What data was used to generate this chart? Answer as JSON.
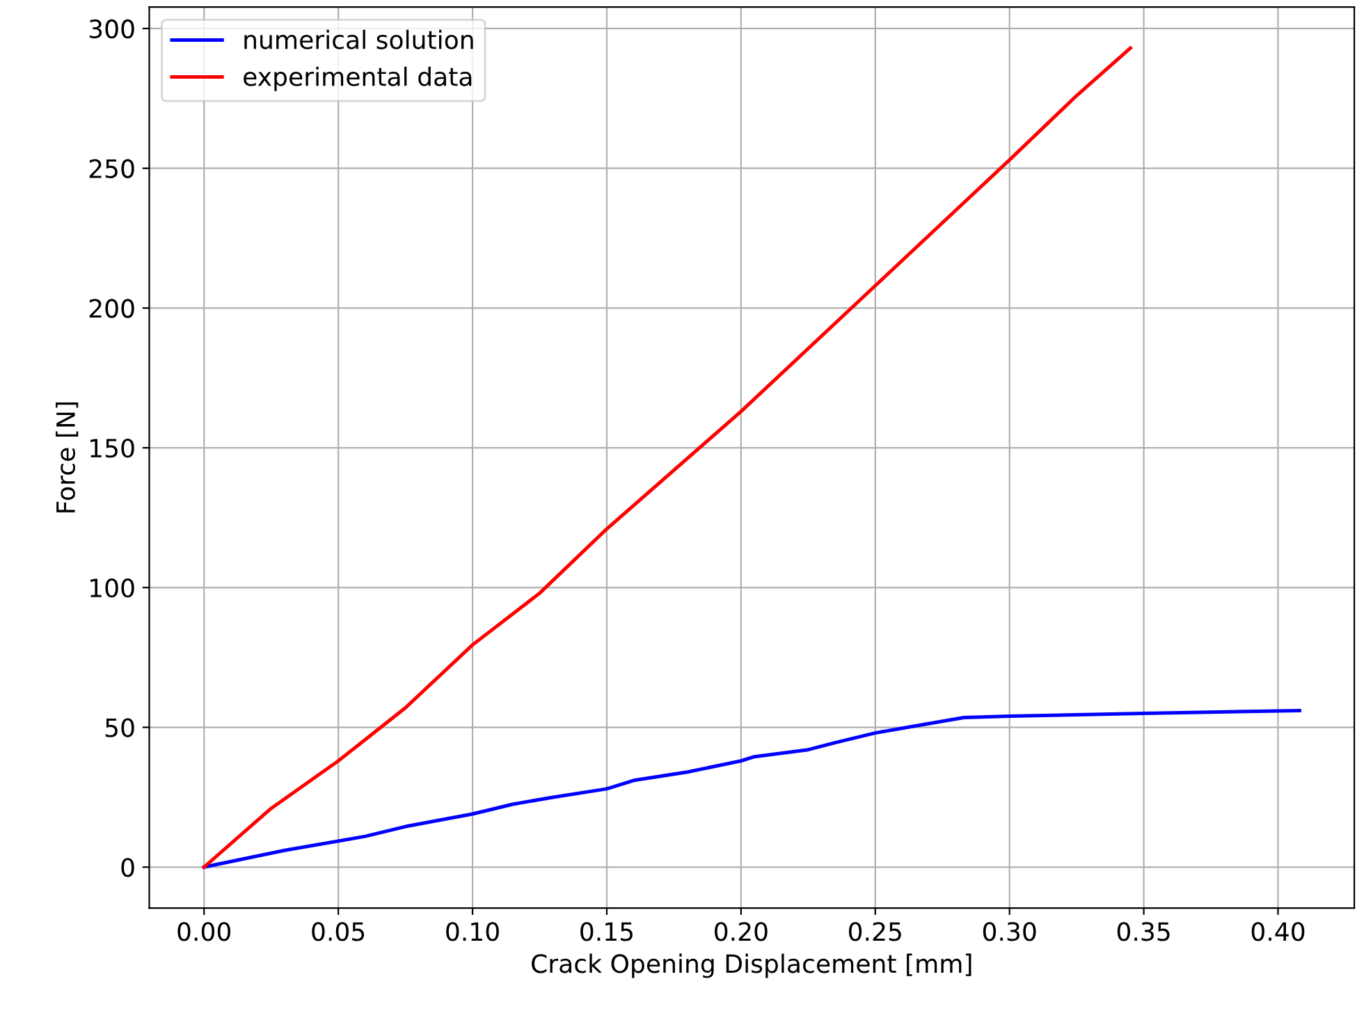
{
  "chart_data": {
    "type": "line",
    "xlabel": "Crack Opening Displacement [mm]",
    "ylabel": "Force [N]",
    "series": [
      {
        "name": "numerical solution",
        "color": "#0000ff",
        "x": [
          0,
          0.015,
          0.03,
          0.06,
          0.075,
          0.1,
          0.115,
          0.13,
          0.15,
          0.16,
          0.18,
          0.2,
          0.205,
          0.225,
          0.235,
          0.25,
          0.265,
          0.283,
          0.3,
          0.35,
          0.408
        ],
        "values": [
          0,
          3,
          6,
          11,
          14.5,
          19,
          22.5,
          25,
          28,
          31,
          34,
          38,
          39.5,
          42,
          44.5,
          48,
          50.5,
          53.5,
          54,
          55,
          56
        ]
      },
      {
        "name": "experimental data",
        "color": "#ff0000",
        "x": [
          0,
          0.025,
          0.05,
          0.075,
          0.1,
          0.125,
          0.15,
          0.2,
          0.25,
          0.3,
          0.325,
          0.345
        ],
        "values": [
          0,
          21,
          38,
          57,
          79.5,
          98,
          121,
          163,
          208,
          253,
          276,
          293
        ]
      }
    ],
    "xlim": [
      -0.0204,
      0.4284
    ],
    "ylim": [
      -14.65,
      307.65
    ],
    "xticks": [
      {
        "value": 0,
        "label": "0.00"
      },
      0.05,
      {
        "value": 0.1,
        "label": "0.10"
      },
      0.15,
      {
        "value": 0.2,
        "label": "0.20"
      },
      0.25,
      {
        "value": 0.3,
        "label": "0.30"
      },
      0.35,
      {
        "value": 0.4,
        "label": "0.40"
      }
    ],
    "yticks": [
      0,
      50,
      100,
      150,
      200,
      250,
      300
    ],
    "grid": true,
    "legend": "top left",
    "marker": "none",
    "line_style": "solid"
  }
}
